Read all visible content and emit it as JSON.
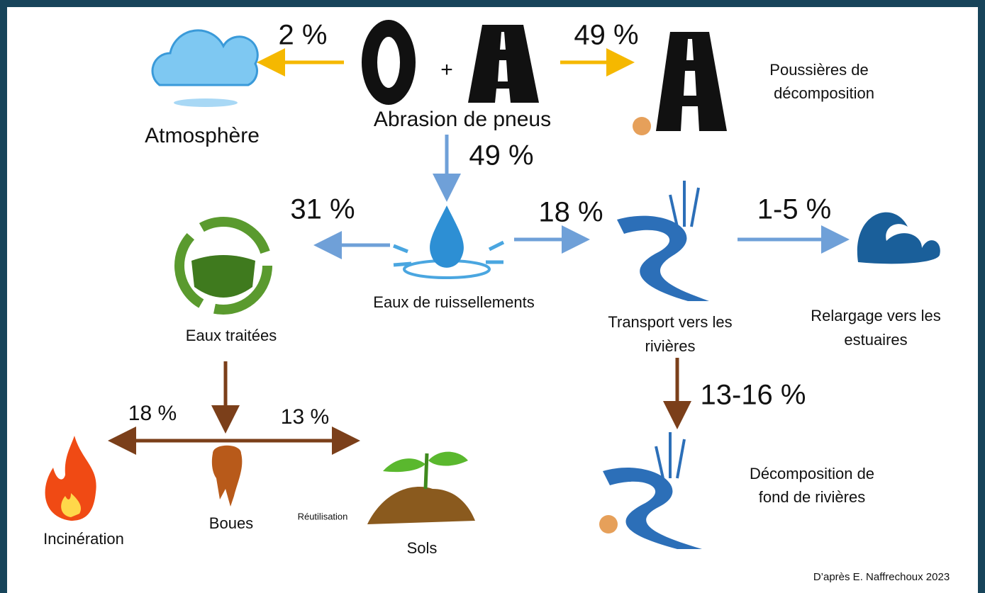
{
  "title": null,
  "nodes": [
    {
      "lines": [
        "Abrasion de pneus"
      ]
    },
    {
      "lines": [
        "Atmosphère"
      ]
    },
    {
      "lines": [
        "Poussières de",
        "décomposition"
      ]
    },
    {
      "lines": [
        "Eaux de ruissellements"
      ]
    },
    {
      "lines": [
        "Eaux traitées"
      ]
    },
    {
      "lines": [
        "Transport vers les",
        "rivières"
      ]
    },
    {
      "lines": [
        "Relargage vers les",
        "estuaires"
      ]
    },
    {
      "lines": [
        "Décomposition de",
        "fond de rivières"
      ]
    },
    {
      "lines": [
        "Incinération"
      ]
    },
    {
      "lines": [
        "Boues"
      ]
    },
    {
      "lines": [
        "Sols"
      ]
    }
  ],
  "plus": "+",
  "flows": [
    {
      "label": "2 %"
    },
    {
      "label": "49 %"
    },
    {
      "label": "49 %"
    },
    {
      "label": "31 %"
    },
    {
      "label": "18 %"
    },
    {
      "label": "1-5 %"
    },
    {
      "label": "13-16 %"
    },
    {
      "label": "18 %"
    },
    {
      "label": "13 %"
    }
  ],
  "reuse": "Réutilisation",
  "credit": "D’après E. Naffrechoux 2023"
}
